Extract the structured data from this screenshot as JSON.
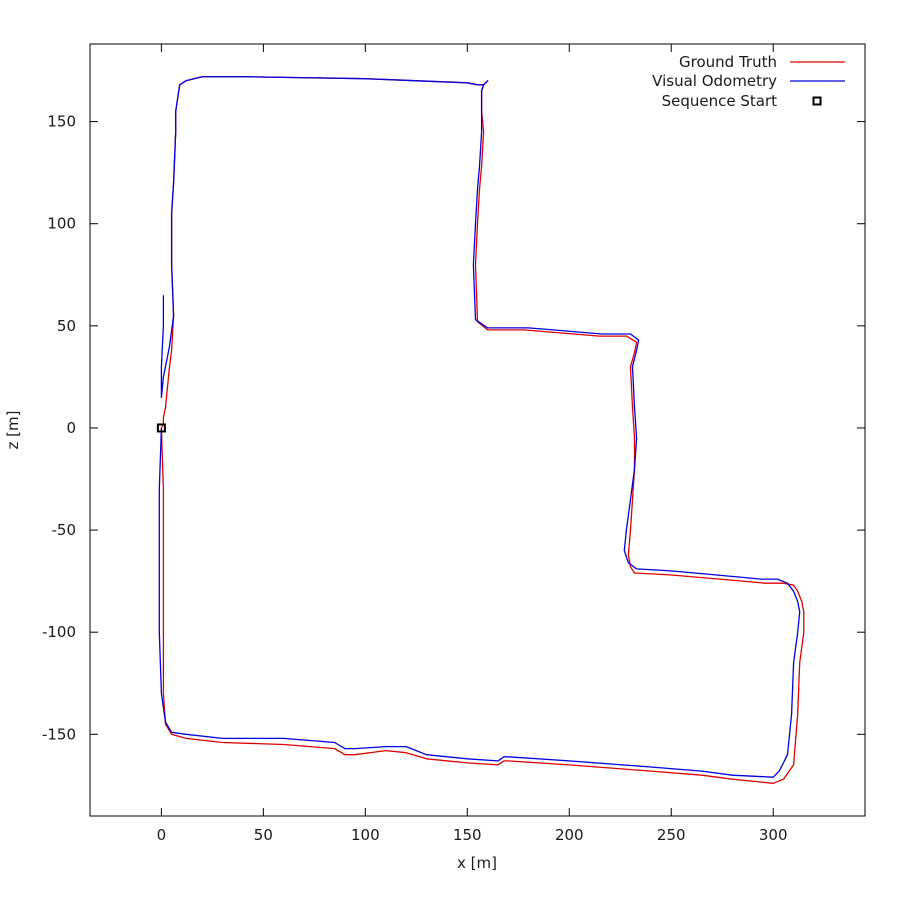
{
  "chart_data": {
    "type": "line",
    "title": "",
    "xlabel": "x [m]",
    "ylabel": "z [m]",
    "xlim": [
      -35,
      345
    ],
    "ylim": [
      -190,
      188
    ],
    "xticks": [
      0,
      50,
      100,
      150,
      200,
      250,
      300
    ],
    "yticks": [
      -150,
      -100,
      -50,
      0,
      50,
      100,
      150
    ],
    "grid": false,
    "legend_position": "top-right",
    "series": [
      {
        "name": "Ground Truth",
        "color": "#e00000",
        "x": [
          0,
          1,
          1,
          1,
          1,
          2,
          5,
          12,
          30,
          60,
          85,
          90,
          95,
          110,
          120,
          130,
          150,
          165,
          168,
          170,
          200,
          240,
          265,
          280,
          300,
          305,
          310,
          312,
          313,
          315,
          315,
          314,
          312,
          310,
          305,
          296,
          285,
          250,
          232,
          230,
          229,
          230,
          231,
          232,
          232,
          231,
          230,
          232,
          233,
          228,
          215,
          190,
          178,
          160,
          155,
          154,
          155,
          156,
          157,
          158,
          157,
          157,
          158,
          160,
          158,
          155,
          150,
          100,
          40,
          20,
          12,
          9,
          7,
          7,
          6,
          5,
          5,
          5,
          6,
          5,
          4,
          3,
          2,
          1,
          1,
          0
        ],
        "y": [
          0,
          -30,
          -60,
          -100,
          -130,
          -145,
          -150,
          -152,
          -154,
          -155,
          -157,
          -160,
          -160,
          -158,
          -159,
          -162,
          -164,
          -165,
          -163,
          -163,
          -165,
          -168,
          -170,
          -172,
          -174,
          -172,
          -165,
          -140,
          -115,
          -100,
          -90,
          -85,
          -80,
          -77,
          -76,
          -76,
          -75,
          -72,
          -71,
          -68,
          -62,
          -50,
          -35,
          -20,
          -5,
          10,
          30,
          37,
          42,
          45,
          45,
          47,
          48,
          48,
          52,
          80,
          100,
          117,
          128,
          145,
          155,
          165,
          168,
          170,
          168,
          168,
          169,
          171,
          172,
          172,
          170,
          168,
          155,
          145,
          120,
          105,
          95,
          80,
          55,
          38,
          30,
          20,
          10,
          5,
          2,
          0
        ]
      },
      {
        "name": "Visual Odometry",
        "color": "#0000e0",
        "x": [
          0,
          -1,
          -1,
          -1,
          0,
          2,
          5,
          12,
          30,
          60,
          85,
          90,
          95,
          110,
          120,
          130,
          150,
          165,
          168,
          170,
          200,
          240,
          265,
          280,
          300,
          303,
          307,
          309,
          310,
          312,
          313,
          312,
          310,
          307,
          302,
          294,
          283,
          250,
          233,
          229,
          227,
          228,
          230,
          232,
          233,
          232,
          231,
          233,
          234,
          230,
          216,
          192,
          180,
          160,
          154,
          153,
          154,
          155,
          156,
          157,
          157,
          157,
          158,
          160,
          158,
          155,
          150,
          100,
          40,
          20,
          12,
          9,
          7,
          7,
          6,
          5,
          5,
          5,
          6,
          4,
          3,
          1,
          0,
          0,
          1,
          1
        ],
        "y": [
          0,
          -30,
          -60,
          -100,
          -130,
          -144,
          -149,
          -150,
          -152,
          -152,
          -154,
          -157,
          -157,
          -156,
          -156,
          -160,
          -162,
          -163,
          -161,
          -161,
          -163,
          -166,
          -168,
          -170,
          -171,
          -168,
          -160,
          -140,
          -115,
          -100,
          -90,
          -85,
          -80,
          -76,
          -74,
          -74,
          -73,
          -70,
          -69,
          -66,
          -60,
          -50,
          -35,
          -20,
          -5,
          10,
          30,
          38,
          43,
          46,
          46,
          48,
          49,
          49,
          53,
          80,
          100,
          117,
          128,
          145,
          155,
          165,
          168,
          170,
          168,
          168,
          169,
          171,
          172,
          172,
          170,
          168,
          155,
          145,
          120,
          105,
          95,
          80,
          55,
          40,
          35,
          25,
          15,
          30,
          50,
          65
        ]
      }
    ],
    "markers": [
      {
        "name": "Sequence Start",
        "symbol": "square",
        "color": "#000000",
        "x": 0,
        "y": 0
      }
    ]
  }
}
